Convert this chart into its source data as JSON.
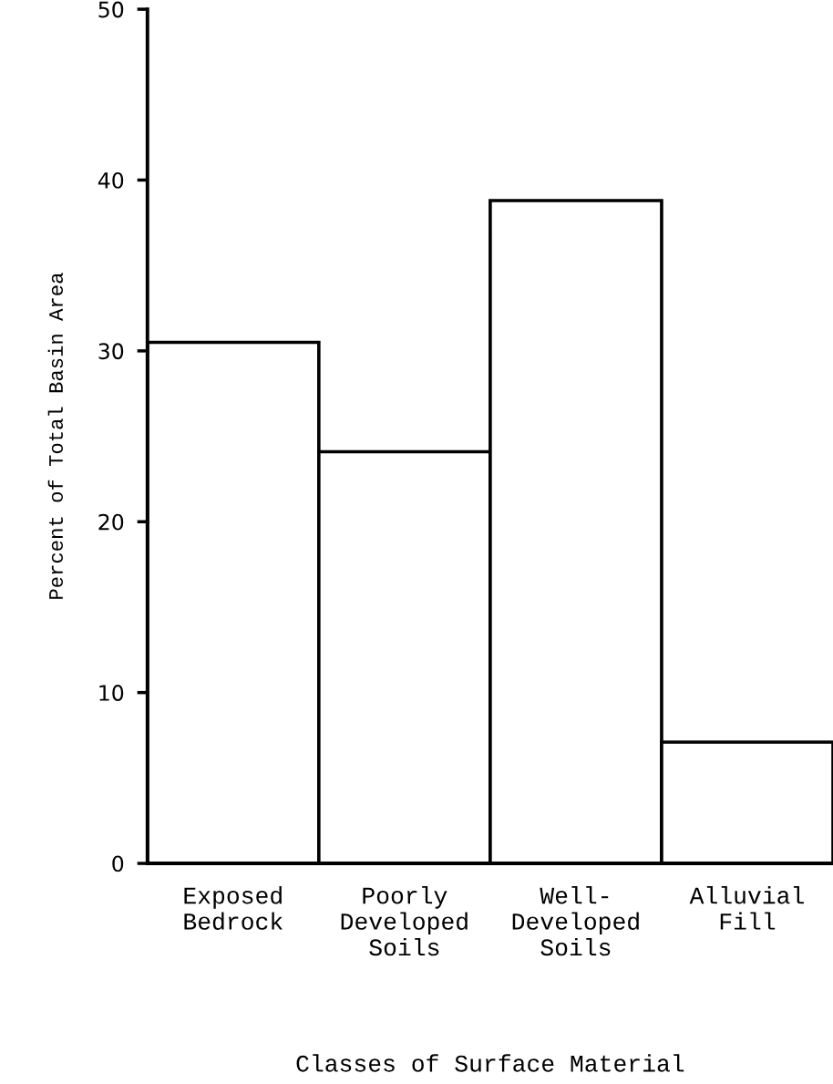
{
  "chart_data": {
    "type": "bar",
    "xlabel": "Classes of Surface Material",
    "ylabel": "Percent of Total Basin Area",
    "categories": [
      "Exposed\nBedrock",
      "Poorly\nDeveloped\nSoils",
      "Well-\nDeveloped\nSoils",
      "Alluvial\nFill"
    ],
    "values": [
      30.5,
      24.1,
      38.8,
      7.1
    ],
    "color": "#000000",
    "ylim": [
      0,
      50
    ],
    "yticks": [
      0,
      10,
      20,
      30,
      40,
      50
    ],
    "grid": false
  }
}
